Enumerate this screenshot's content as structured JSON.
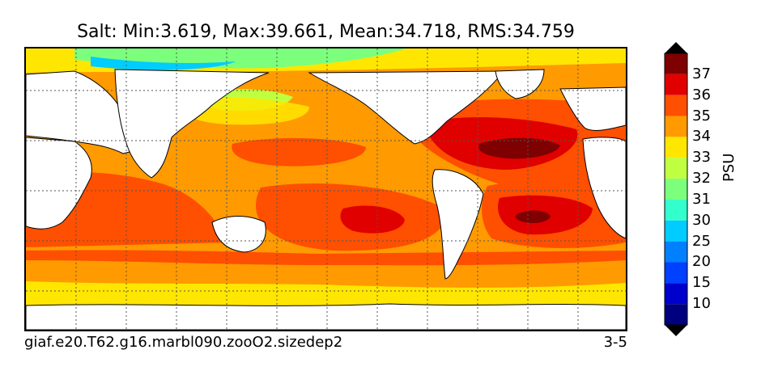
{
  "title": "Salt: Min:3.619, Max:39.661, Mean:34.718, RMS:34.759",
  "footer": {
    "case_name": "giaf.e20.T62.g16.marbl090.zooO2.sizedep2",
    "years": "3-5"
  },
  "colorbar": {
    "unit": "PSU",
    "levels": [
      "10",
      "15",
      "20",
      "25",
      "30",
      "31",
      "32",
      "33",
      "34",
      "35",
      "36",
      "37"
    ],
    "colors": [
      "#00007f",
      "#0000cd",
      "#0040ff",
      "#0080ff",
      "#00ccff",
      "#33ffcc",
      "#7cff7c",
      "#bfff3f",
      "#ffe600",
      "#ff9a00",
      "#ff4f00",
      "#e00000",
      "#7f0000"
    ]
  },
  "map": {
    "land_color": "#ffffff",
    "grid": "dotted",
    "coastline_color": "#000000"
  }
}
